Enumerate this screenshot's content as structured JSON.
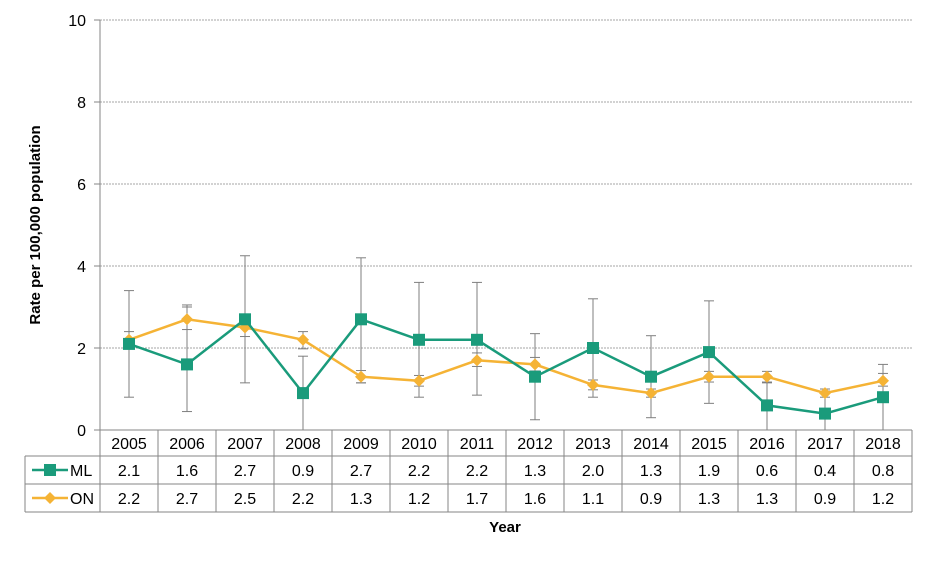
{
  "chart_data": {
    "type": "line",
    "title": "",
    "xlabel": "Year",
    "ylabel": "Rate per 100,000 population",
    "ylim": [
      0,
      10
    ],
    "yticks": [
      "0",
      "2",
      "4",
      "6",
      "8",
      "10"
    ],
    "grid": true,
    "legend_placement": "data-table-left",
    "categories": [
      "2005",
      "2006",
      "2007",
      "2008",
      "2009",
      "2010",
      "2011",
      "2012",
      "2013",
      "2014",
      "2015",
      "2016",
      "2017",
      "2018"
    ],
    "series": [
      {
        "name": "ML",
        "color": "#1a9b7b",
        "marker": "square",
        "values": [
          2.1,
          1.6,
          2.7,
          0.9,
          2.7,
          2.2,
          2.2,
          1.3,
          2.0,
          1.3,
          1.9,
          0.6,
          0.4,
          0.8
        ],
        "labels": [
          "2.1",
          "1.6",
          "2.7",
          "0.9",
          "2.7",
          "2.2",
          "2.2",
          "1.3",
          "2.0",
          "1.3",
          "1.9",
          "0.6",
          "0.4",
          "0.8"
        ],
        "ci_low": [
          0.8,
          0.45,
          1.15,
          0.0,
          1.15,
          0.8,
          0.85,
          0.25,
          0.8,
          0.3,
          0.65,
          0.0,
          0.0,
          0.0
        ],
        "ci_high": [
          3.4,
          3.05,
          4.25,
          1.8,
          4.2,
          3.6,
          3.6,
          2.35,
          3.2,
          2.3,
          3.15,
          1.15,
          0.95,
          1.6
        ]
      },
      {
        "name": "ON",
        "color": "#f5b335",
        "marker": "diamond",
        "values": [
          2.2,
          2.7,
          2.5,
          2.2,
          1.3,
          1.2,
          1.7,
          1.6,
          1.1,
          0.9,
          1.3,
          1.3,
          0.9,
          1.2
        ],
        "labels": [
          "2.2",
          "2.7",
          "2.5",
          "2.2",
          "1.3",
          "1.2",
          "1.7",
          "1.6",
          "1.1",
          "0.9",
          "1.3",
          "1.3",
          "0.9",
          "1.2"
        ],
        "ci_low": [
          2.0,
          2.45,
          2.28,
          1.98,
          1.15,
          1.07,
          1.55,
          1.44,
          0.98,
          0.8,
          1.17,
          1.17,
          0.8,
          1.07
        ],
        "ci_high": [
          2.4,
          3.0,
          2.73,
          2.4,
          1.45,
          1.33,
          1.88,
          1.77,
          1.22,
          1.0,
          1.43,
          1.43,
          1.0,
          1.38
        ]
      }
    ]
  }
}
